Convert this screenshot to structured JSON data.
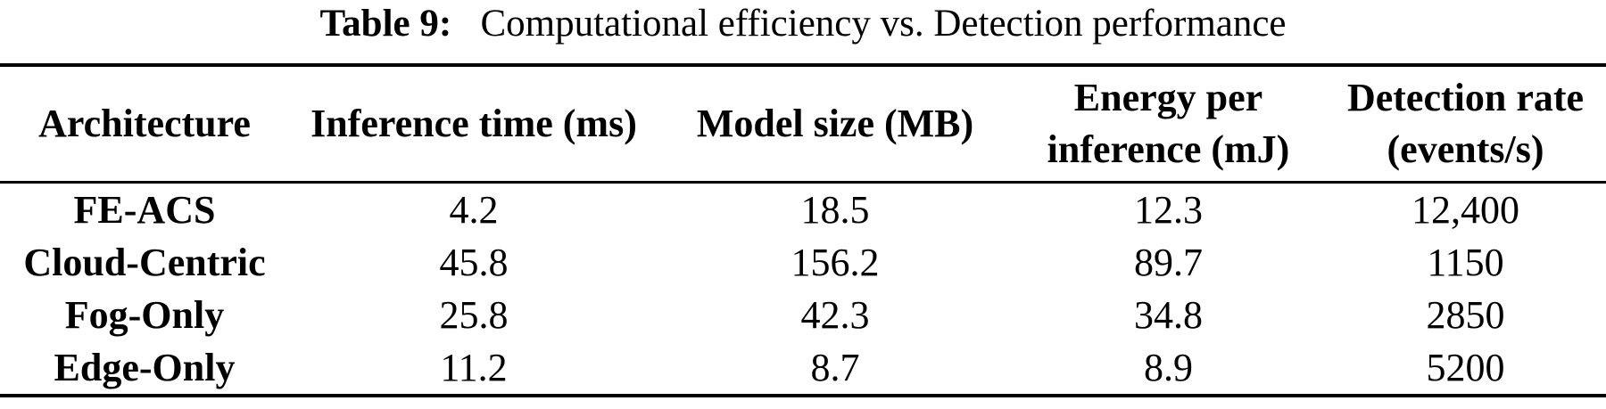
{
  "caption": {
    "label": "Table 9:",
    "text": "Computational efficiency vs. Detection performance"
  },
  "table": {
    "headers": [
      "Architecture",
      "Inference time (ms)",
      "Model size (MB)",
      "Energy per\ninference (mJ)",
      "Detection rate\n(events/s)"
    ],
    "rows": [
      {
        "cells": [
          "FE-ACS",
          "4.2",
          "18.5",
          "12.3",
          "12,400"
        ]
      },
      {
        "cells": [
          "Cloud-Centric",
          "45.8",
          "156.2",
          "89.7",
          "1150"
        ]
      },
      {
        "cells": [
          "Fog-Only",
          "25.8",
          "42.3",
          "34.8",
          "2850"
        ]
      },
      {
        "cells": [
          "Edge-Only",
          "11.2",
          "8.7",
          "8.9",
          "5200"
        ]
      }
    ],
    "rule_color": "#000000",
    "text_color": "#000000",
    "background_color": "#ffffff"
  }
}
